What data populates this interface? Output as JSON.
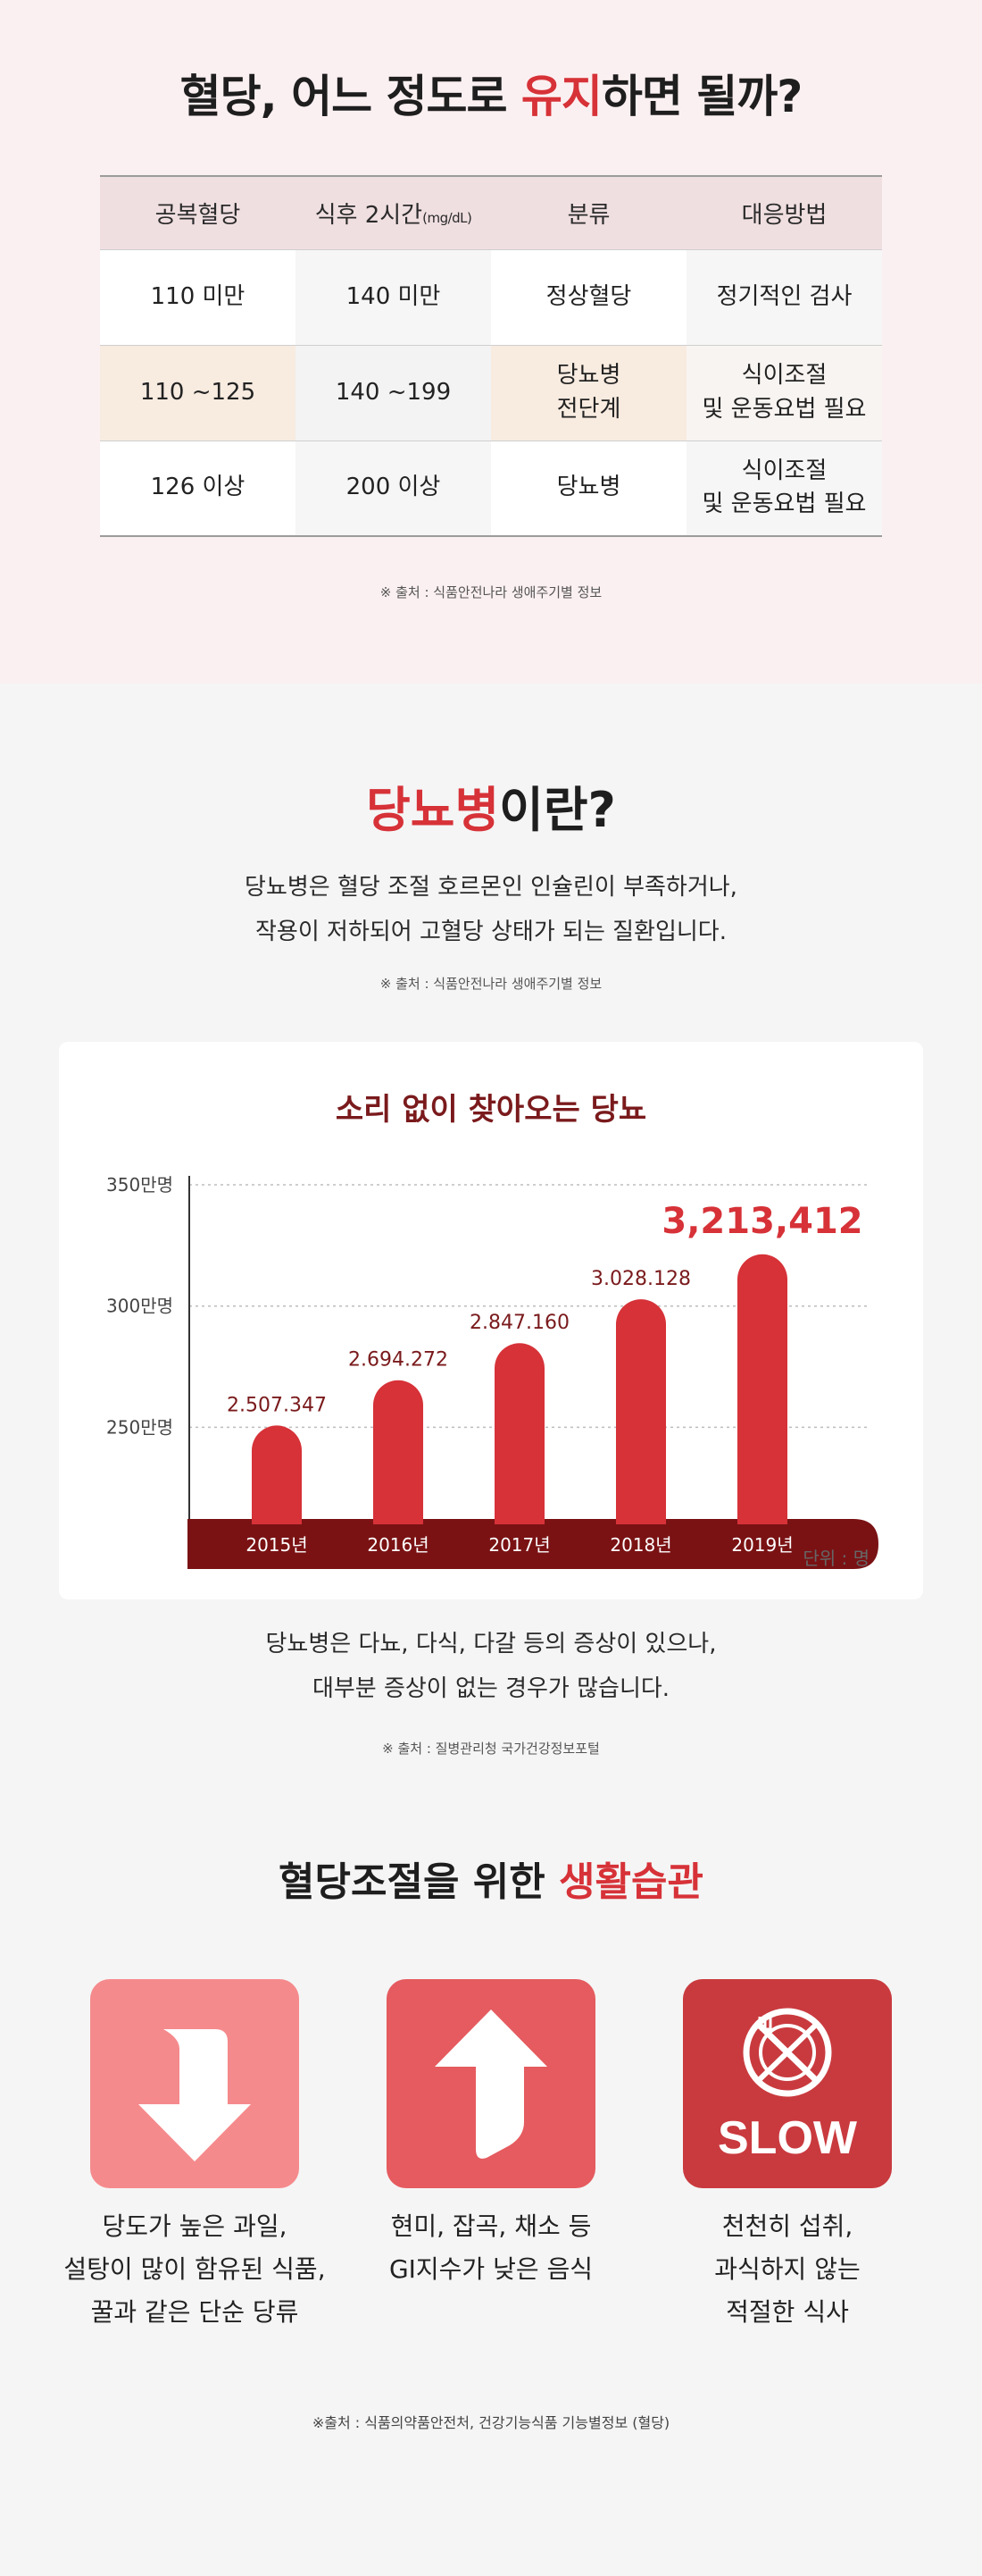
{
  "section1": {
    "title_pre": "혈당, 어느 정도로 ",
    "title_hl": "유지",
    "title_post": "하면 될까?",
    "table": {
      "headers": [
        "공복혈당",
        "식후 2시간",
        "분류",
        "대응방법"
      ],
      "header_unit": "(mg/dL)",
      "rows": [
        {
          "fasting": "110 미만",
          "postmeal": "140 미만",
          "class_l1": "정상혈당",
          "class_l2": "",
          "action_l1": "정기적인 검사",
          "action_l2": ""
        },
        {
          "fasting": "110 ~125",
          "postmeal": "140 ~199",
          "class_l1": "당뇨병",
          "class_l2": "전단계",
          "action_l1": "식이조절",
          "action_l2": "및 운동요법 필요"
        },
        {
          "fasting": "126 이상",
          "postmeal": "200 이상",
          "class_l1": "당뇨병",
          "class_l2": "",
          "action_l1": "식이조절",
          "action_l2": "및 운동요법 필요"
        }
      ]
    },
    "source": "※ 출처 : 식품안전나라 생애주기별 정보"
  },
  "section2": {
    "title_hl": "당뇨병",
    "title_post": "이란?",
    "desc_line1": "당뇨병은 혈당 조절 호르몬인 인슐린이 부족하거나,",
    "desc_line2": "작용이 저하되어 고혈당 상태가 되는 질환입니다.",
    "source": "※ 출처 : 식품안전나라 생애주기별 정보",
    "unit": "단위 : 명",
    "after_line1": "당뇨병은 다뇨, 다식, 다갈 등의 증상이 있으나,",
    "after_line2": "대부분 증상이 없는 경우가 많습니다.",
    "source2": "※ 출처 : 질병관리청 국가건강정보포털"
  },
  "chart_data": {
    "type": "bar",
    "title": "소리 없이 찾아오는 당뇨",
    "categories": [
      "2015년",
      "2016년",
      "2017년",
      "2018년",
      "2019년"
    ],
    "values": [
      2507347,
      2694272,
      2847160,
      3028128,
      3213412
    ],
    "value_labels": [
      "2.507.347",
      "2.694.272",
      "2.847.160",
      "3.028.128",
      "3,213,412"
    ],
    "y_ticks": [
      2500000,
      3000000,
      3500000
    ],
    "y_tick_labels": [
      "250만명",
      "300만명",
      "350만명"
    ],
    "ylim": [
      2100000,
      3500000
    ],
    "grid": true,
    "colors": {
      "bar": "#d63238",
      "axis_band": "#7a1214",
      "grid": "#bdbdbd",
      "highlight_label": "#d63238",
      "label": "#7a1a1c"
    }
  },
  "section3": {
    "title_pre": "혈당조절을 위한 ",
    "title_hl": "생활습관",
    "habits": [
      {
        "icon": "arrow-down-icon",
        "color": "#f58a8c",
        "line1": "당도가 높은 과일,",
        "line2": "설탕이 많이 함유된 식품,",
        "line3": "꿀과 같은 단순 당류"
      },
      {
        "icon": "arrow-up-icon",
        "color": "#e55b5f",
        "line1": "현미, 잡곡, 채소 등",
        "line2": "GI지수가 낮은 음식",
        "line3": ""
      },
      {
        "icon": "no-eating-icon",
        "color": "#c93a3e",
        "label": "SLOW",
        "line1": "천천히 섭취,",
        "line2": "과식하지 않는",
        "line3": "적절한 식사"
      }
    ],
    "footnote": "※출처 : 식품의약품안전처, 건강기능식품 기능별정보 (혈당)"
  }
}
